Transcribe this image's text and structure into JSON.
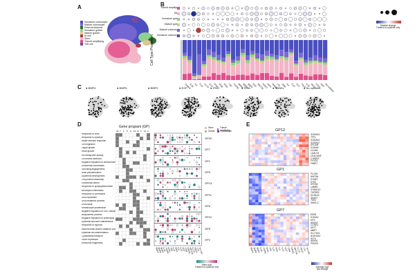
{
  "panels": {
    "a": "A",
    "b": "B",
    "c": "C",
    "d": "D",
    "e": "E"
  },
  "panel_a": {
    "legend": [
      {
        "label": "Immature colonocyte",
        "color": "#4a4fc1"
      },
      {
        "label": "Mature colonocyte",
        "color": "#7b68d6"
      },
      {
        "label": "Enteroendocrine",
        "color": "#2e6b2e"
      },
      {
        "label": "Immature goblet",
        "color": "#8fd08f"
      },
      {
        "label": "Mature goblet",
        "color": "#d9c88f"
      },
      {
        "label": "M cell",
        "color": "#b03a4a"
      },
      {
        "label": "Stem",
        "color": "#f2b6c8"
      },
      {
        "label": "Transit amplifying",
        "color": "#e0508c"
      },
      {
        "label": "Tuft cell",
        "color": "#7b4a9a"
      }
    ]
  },
  "panel_b": {
    "dot_rows": [
      "Transit amplifying",
      "Stem",
      "Immature goblet",
      "Mature goblet",
      "Mature colonocyte",
      "Immature colonocyte"
    ],
    "row_colors": [
      "#e0508c",
      "#f2b6c8",
      "#8fd08f",
      "#d9c88f",
      "#7b68d6",
      "#4a4fc1"
    ],
    "y_axis_label": "Cell Type Proportion",
    "size_legend": [
      "-1.0",
      "0.5",
      "1.0"
    ],
    "color_legend_label": "Relative change\nTreated vs cytokine only",
    "categories": [
      "Control",
      "IL1B",
      "IL6",
      "IL13",
      "IL17A",
      "IL22",
      "IFNA",
      "IFNB",
      "IFNG",
      "TNF",
      "TGFB1",
      "BMP4",
      "BMP6",
      "BMP2",
      "EGF",
      "WNT3A",
      "RSPO",
      "NOG",
      "RANKL",
      "LTA",
      "OSM",
      "IL4",
      "IL10",
      "IL21",
      "TSLP",
      "IL33",
      "VEGF",
      "FGF2",
      "HGF",
      "No cytokine"
    ]
  },
  "panel_c": {
    "labels": [
      "BMP4",
      "BMP6",
      "BMP2",
      "EGF",
      "IFNG",
      "IFNA",
      "RANKL",
      "No cytokine"
    ]
  },
  "panel_d": {
    "gp_title": "Gene program (GP)",
    "gp_columns": [
      "20",
      "7",
      "1",
      "5",
      "9",
      "13",
      "11",
      "6",
      "12",
      "2"
    ],
    "go_terms": [
      "Response to virus",
      "Response to cytokine",
      "Innate immune response",
      "Cell migration",
      "Organ growth",
      "Heart growth",
      "Ion transporter activity",
      "Cell-matrix adhesion",
      "Negative regulation of senescence",
      "Endothelial chemotaxis",
      "Sprouting angiogenesis",
      "Actin polymerization",
      "Epidermis development",
      "Cell-junction assembly",
      "Endothelial barrier",
      "Response to lipopolysaccharide",
      "Neutrophil chemotaxis",
      "Response to chemokine",
      "DNA replication",
      "DNA metabolic process",
      "DNA repair",
      "Keratinocyte proliferation",
      "Negative regulation of ERK cascade",
      "Biosynthetic process",
      "Negative regulation of proteolysis",
      "Epithelial structure maintenance",
      "Response to hypoxia",
      "Mitochondrial protein catabolic process",
      "Epithelial cell differentiation",
      "Cytoskeletal transport",
      "Gene expression",
      "Ribosome biogenesis"
    ],
    "gp_labels": [
      "GP20",
      "GP7",
      "GP1",
      "GP9",
      "GP13",
      "GP11",
      "GP6",
      "GP12",
      "GP5",
      "GP2"
    ],
    "legend": [
      {
        "label": "Stem",
        "color": "#f2b6c8"
      },
      {
        "label": "Transit amplifying",
        "color": "#e0508c"
      },
      {
        "label": "Goblet",
        "color": "#8fd08f"
      },
      {
        "label": "Colonocyte",
        "color": "#4a4fc1"
      }
    ],
    "bottom_labels": [
      "BMP4",
      "BMP6",
      "BMP2",
      "IL1B",
      "TGFB1",
      "IFNG",
      "TNF",
      "IL22",
      "IFNA",
      "IL6",
      "IL13",
      "EGF",
      "OSM",
      "RANKL",
      "WNT3A",
      "IL17A",
      "VEGF",
      "LTA",
      "No cyto"
    ],
    "effect_label": "Effect size\nTreated vs cytokine only"
  },
  "panel_e": {
    "titles": [
      "GP12",
      "GP1",
      "GP7"
    ],
    "gp12_genes": [
      "S100A14",
      "TFF1",
      "S100A16",
      "S100A11",
      "EPCAM",
      "S100A6",
      "CLDN4",
      "LGALS4",
      "CEACAM5",
      "CYB5R3",
      "FXYD3",
      "FABP1"
    ],
    "gp1_genes": [
      "PLCB4",
      "WNT5A",
      "SYNE2",
      "ETS2",
      "SPON1",
      "LAMB3",
      "STARD13",
      "TGFBR2",
      "DCBLD2",
      "SKAP2",
      "TNS3",
      "SMOC2"
    ],
    "gp7_genes": [
      "EDN1",
      "S100A2",
      "MYC",
      "ANXA3",
      "CCND1",
      "KRT7",
      "MMP7",
      "SLC7A11",
      "ALDH1A3",
      "KLF4",
      "ANXA1",
      "PDGFA"
    ],
    "colorbar_label": "Average log2\nfold change"
  }
}
